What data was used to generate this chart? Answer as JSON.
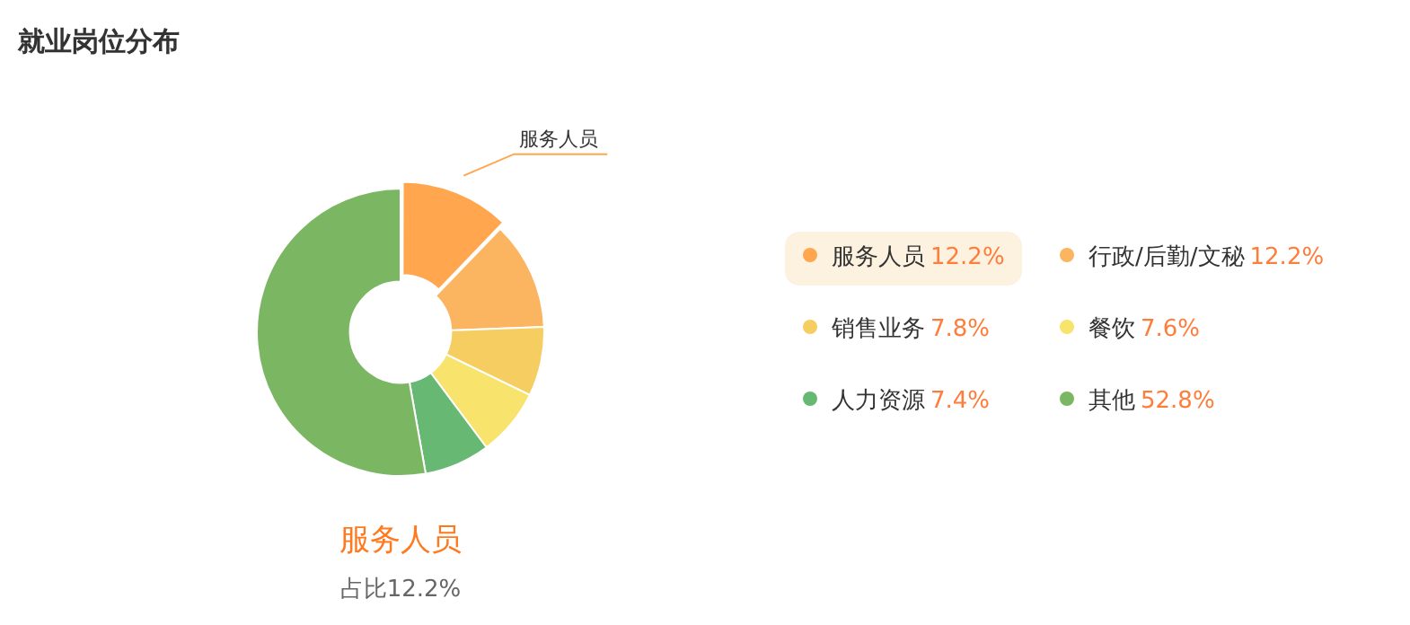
{
  "chart_data": {
    "type": "donut",
    "title": "就业岗位分布",
    "categories": [
      "服务人员",
      "行政/后勤/文秘",
      "销售业务",
      "餐饮",
      "人力资源",
      "其他"
    ],
    "values": [
      12.2,
      12.2,
      7.8,
      7.6,
      7.4,
      52.8
    ],
    "value_labels": [
      "12.2%",
      "12.2%",
      "7.8%",
      "7.6%",
      "7.4%",
      "52.8%"
    ],
    "colors": [
      "#ffa64f",
      "#fbb560",
      "#f6cd60",
      "#f8e36d",
      "#66b873",
      "#7bb763"
    ],
    "legend": "right",
    "annotations": [
      "服务人员",
      "占比12.2%"
    ]
  }
}
